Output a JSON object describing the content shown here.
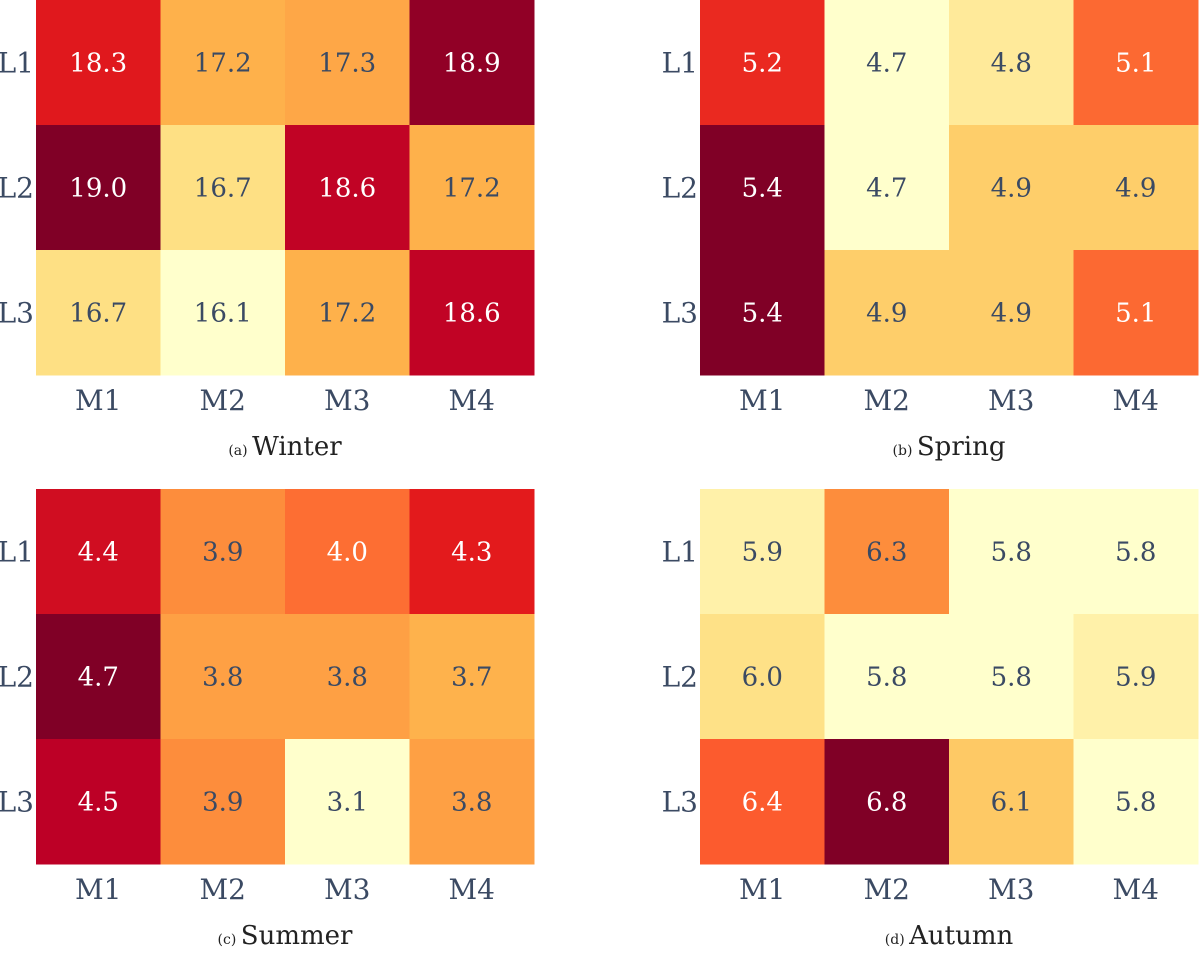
{
  "chart_data": [
    {
      "type": "heatmap",
      "caption_prefix": "(a)",
      "caption": "Winter",
      "rows": [
        "L1",
        "L2",
        "L3"
      ],
      "columns": [
        "M1",
        "M2",
        "M3",
        "M4"
      ],
      "values": [
        [
          18.3,
          17.2,
          17.3,
          18.9
        ],
        [
          19.0,
          16.7,
          18.6,
          17.2
        ],
        [
          16.7,
          16.1,
          17.2,
          18.6
        ]
      ],
      "colormap": "YlOrRd",
      "colorbar": false
    },
    {
      "type": "heatmap",
      "caption_prefix": "(b)",
      "caption": "Spring",
      "rows": [
        "L1",
        "L2",
        "L3"
      ],
      "columns": [
        "M1",
        "M2",
        "M3",
        "M4"
      ],
      "values": [
        [
          5.2,
          4.7,
          4.8,
          5.1
        ],
        [
          5.4,
          4.7,
          4.9,
          4.9
        ],
        [
          5.4,
          4.9,
          4.9,
          5.1
        ]
      ],
      "colormap": "YlOrRd",
      "colorbar": false
    },
    {
      "type": "heatmap",
      "caption_prefix": "(c)",
      "caption": "Summer",
      "rows": [
        "L1",
        "L2",
        "L3"
      ],
      "columns": [
        "M1",
        "M2",
        "M3",
        "M4"
      ],
      "values": [
        [
          4.4,
          3.9,
          4.0,
          4.3
        ],
        [
          4.7,
          3.8,
          3.8,
          3.7
        ],
        [
          4.5,
          3.9,
          3.1,
          3.8
        ]
      ],
      "colormap": "YlOrRd",
      "colorbar": false
    },
    {
      "type": "heatmap",
      "caption_prefix": "(d)",
      "caption": "Autumn",
      "rows": [
        "L1",
        "L2",
        "L3"
      ],
      "columns": [
        "M1",
        "M2",
        "M3",
        "M4"
      ],
      "values": [
        [
          5.9,
          6.3,
          5.8,
          5.8
        ],
        [
          6.0,
          5.8,
          5.8,
          5.9
        ],
        [
          6.4,
          6.8,
          6.1,
          5.8
        ]
      ],
      "colormap": "YlOrRd",
      "colorbar": false
    }
  ],
  "colors": {
    "tick_label": "#3b4a63",
    "text_light": "#ffffff",
    "text_dark": "#3b4a63",
    "colormap_stops": [
      "#ffffcc",
      "#ffeda0",
      "#fed976",
      "#feb24c",
      "#fd8d3c",
      "#fc4e2a",
      "#e31a1c",
      "#bd0026",
      "#800026"
    ]
  }
}
